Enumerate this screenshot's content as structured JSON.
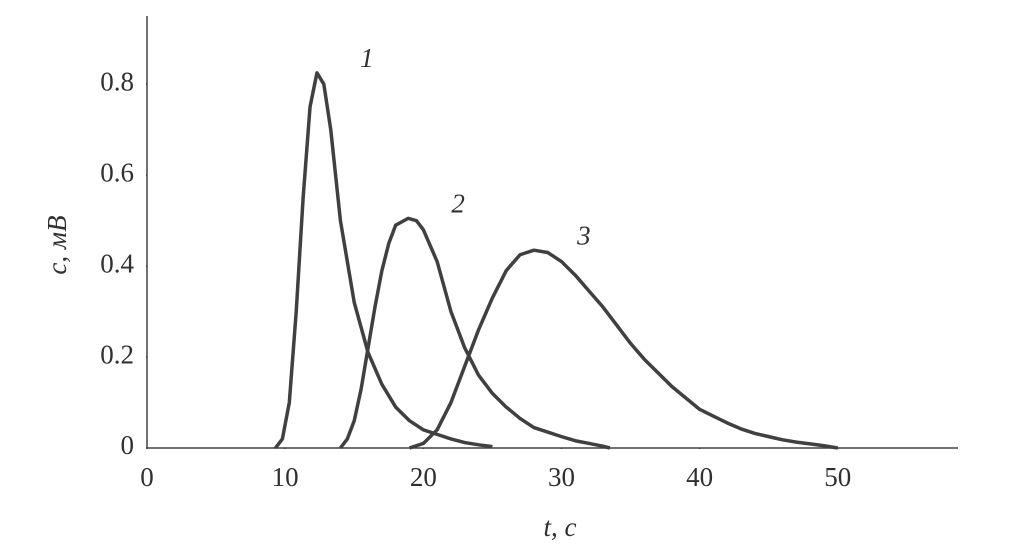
{
  "chart_data": {
    "type": "line",
    "x_label": "t, с",
    "y_label": "c, мВ",
    "xlim": [
      0,
      58.7
    ],
    "ylim": [
      0,
      0.95
    ],
    "xticks": [
      0,
      10,
      20,
      30,
      40,
      50
    ],
    "yticks": [
      0,
      0.2,
      0.4,
      0.6,
      0.8
    ],
    "series": [
      {
        "name": "1",
        "color": "#404040",
        "x": [
          9.3,
          9.8,
          10.3,
          10.8,
          11.3,
          11.8,
          12.3,
          12.8,
          13.3,
          14,
          15,
          16,
          17,
          18,
          19,
          20,
          21,
          22,
          23,
          24,
          25
        ],
        "values": [
          0,
          0.02,
          0.1,
          0.3,
          0.55,
          0.75,
          0.825,
          0.8,
          0.7,
          0.5,
          0.32,
          0.21,
          0.14,
          0.09,
          0.06,
          0.04,
          0.03,
          0.02,
          0.012,
          0.007,
          0.003
        ]
      },
      {
        "name": "2",
        "color": "#404040",
        "x": [
          14,
          14.5,
          15,
          15.5,
          16,
          16.5,
          17,
          17.5,
          18,
          18.9,
          19.5,
          20,
          21,
          22,
          23,
          24,
          25,
          26,
          27,
          28,
          29,
          30,
          31,
          32,
          33,
          33.5
        ],
        "values": [
          0,
          0.02,
          0.06,
          0.13,
          0.22,
          0.31,
          0.39,
          0.45,
          0.49,
          0.505,
          0.5,
          0.48,
          0.41,
          0.3,
          0.22,
          0.16,
          0.12,
          0.09,
          0.065,
          0.045,
          0.035,
          0.025,
          0.016,
          0.01,
          0.004,
          0
        ]
      },
      {
        "name": "3",
        "color": "#404040",
        "x": [
          19,
          20,
          21,
          22,
          23,
          24,
          25,
          26,
          27,
          28,
          29,
          30,
          31,
          32,
          33,
          34,
          35,
          36,
          37,
          38,
          39,
          40,
          41,
          42,
          43,
          44,
          45,
          46,
          47,
          48,
          49,
          50
        ],
        "values": [
          0,
          0.01,
          0.04,
          0.1,
          0.18,
          0.26,
          0.33,
          0.39,
          0.425,
          0.435,
          0.43,
          0.41,
          0.38,
          0.345,
          0.31,
          0.27,
          0.23,
          0.195,
          0.165,
          0.135,
          0.11,
          0.085,
          0.07,
          0.055,
          0.042,
          0.032,
          0.025,
          0.018,
          0.013,
          0.009,
          0.005,
          0
        ]
      }
    ]
  }
}
